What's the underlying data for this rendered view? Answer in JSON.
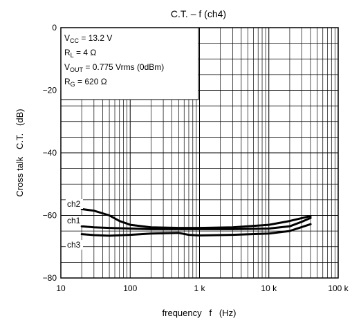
{
  "chart_data": {
    "type": "line",
    "title": "C.T. – f (ch4)",
    "xlabel": "frequency   f   (Hz)",
    "ylabel": "Cross talk   C.T.   (dB)",
    "x_scale": "log",
    "xlim": [
      10,
      100000
    ],
    "ylim": [
      -80,
      0
    ],
    "grid": true,
    "x_ticks": [
      {
        "value": 10,
        "label": "10"
      },
      {
        "value": 100,
        "label": "100"
      },
      {
        "value": 1000,
        "label": "1 k"
      },
      {
        "value": 10000,
        "label": "10 k"
      },
      {
        "value": 100000,
        "label": "100 k"
      }
    ],
    "y_ticks": [
      {
        "value": 0,
        "label": "0"
      },
      {
        "value": -20,
        "label": "−20"
      },
      {
        "value": -40,
        "label": "−40"
      },
      {
        "value": -60,
        "label": "−60"
      },
      {
        "value": -80,
        "label": "−80"
      }
    ],
    "conditions": [
      {
        "main": "V",
        "sub": "CC",
        "rest": " = 13.2 V"
      },
      {
        "main": "R",
        "sub": "L",
        "rest": " = 4 Ω"
      },
      {
        "main": "V",
        "sub": "OUT",
        "rest": " = 0.775 Vrms (0dBm)"
      },
      {
        "main": "R",
        "sub": "G",
        "rest": " = 620 Ω"
      }
    ],
    "series": [
      {
        "name": "ch2",
        "x": [
          20,
          30,
          50,
          70,
          100,
          200,
          500,
          1000,
          3000,
          10000,
          20000,
          40000
        ],
        "y": [
          -58,
          -58.5,
          -60,
          -61.8,
          -63,
          -63.8,
          -64,
          -64,
          -63.8,
          -63,
          -61.8,
          -60.2
        ]
      },
      {
        "name": "ch1",
        "x": [
          20,
          30,
          50,
          100,
          200,
          500,
          1000,
          3000,
          10000,
          20000,
          30000,
          40000
        ],
        "y": [
          -63.5,
          -63.8,
          -64,
          -64.2,
          -64.4,
          -64.4,
          -64.4,
          -64.4,
          -64.2,
          -63.5,
          -62,
          -60.8
        ]
      },
      {
        "name": "ch3",
        "x": [
          20,
          30,
          50,
          100,
          200,
          500,
          700,
          1000,
          3000,
          10000,
          20000,
          40000
        ],
        "y": [
          -66,
          -66.3,
          -66.5,
          -66.2,
          -65.8,
          -65.6,
          -66.2,
          -66.4,
          -66.2,
          -65.8,
          -65,
          -62.8
        ]
      }
    ]
  }
}
